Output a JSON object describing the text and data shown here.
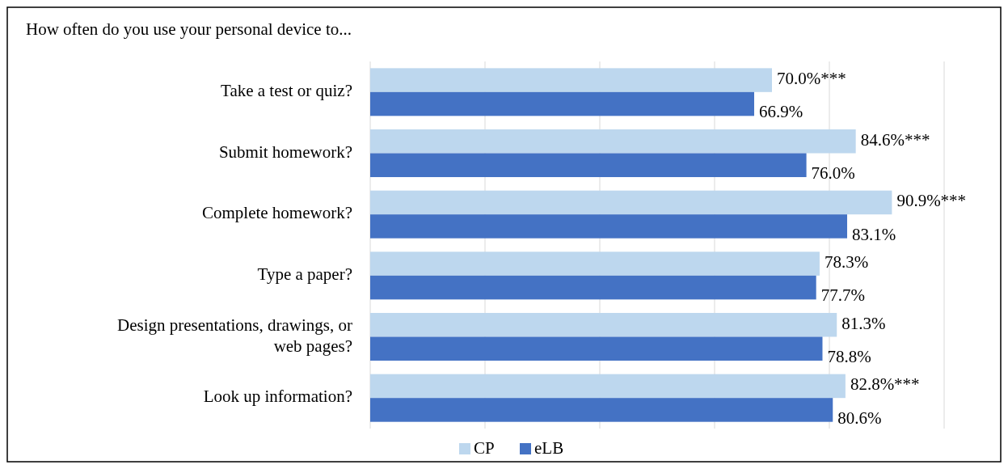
{
  "chart_data": {
    "type": "bar",
    "orientation": "horizontal",
    "title": "How often do you use your personal device to...",
    "categories": [
      "Take a test or quiz?",
      "Submit homework?",
      "Complete homework?",
      "Type a paper?",
      "Design presentations, drawings, or web pages?",
      "Look up information?"
    ],
    "series": [
      {
        "name": "CP",
        "color": "#bdd7ee",
        "values": [
          70.0,
          84.6,
          90.9,
          78.3,
          81.3,
          82.8
        ],
        "value_labels": [
          "70.0%***",
          "84.6%***",
          "90.9%***",
          "78.3%",
          "81.3%",
          "82.8%***"
        ]
      },
      {
        "name": "eLB",
        "color": "#4472c4",
        "values": [
          66.9,
          76.0,
          83.1,
          77.7,
          78.8,
          80.6
        ],
        "value_labels": [
          "66.9%",
          "76.0%",
          "83.1%",
          "77.7%",
          "78.8%",
          "80.6%"
        ]
      }
    ],
    "xlim": [
      0,
      100
    ],
    "xticks": [
      {
        "value": 0,
        "label": null
      },
      {
        "value": 20,
        "label": null
      },
      {
        "value": 40,
        "label": null
      },
      {
        "value": 60,
        "label": null
      },
      {
        "value": 80,
        "label": null
      },
      {
        "value": 100,
        "label": null
      }
    ],
    "grid": "x",
    "tick_labels": "y",
    "legend": "bottom"
  }
}
